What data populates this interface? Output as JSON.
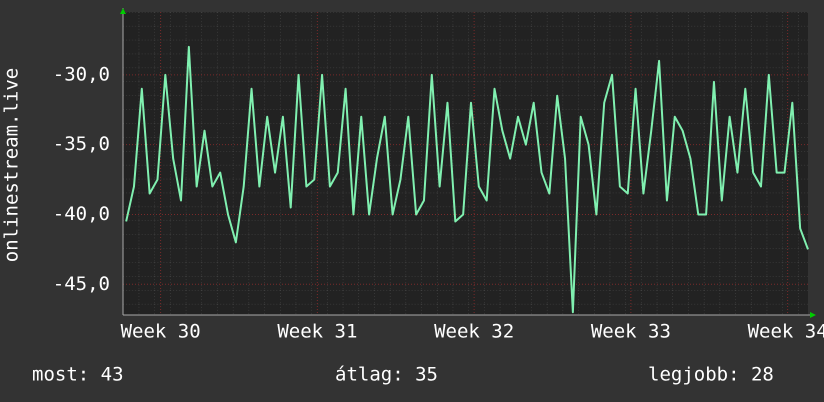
{
  "chart_data": {
    "type": "line",
    "y_label": "onlinestream.live",
    "x": [
      29.78,
      29.83,
      29.88,
      29.93,
      29.98,
      30.03,
      30.08,
      30.13,
      30.18,
      30.23,
      30.28,
      30.33,
      30.38,
      30.43,
      30.48,
      30.53,
      30.58,
      30.63,
      30.68,
      30.73,
      30.78,
      30.83,
      30.88,
      30.93,
      30.98,
      31.03,
      31.08,
      31.13,
      31.18,
      31.23,
      31.28,
      31.33,
      31.38,
      31.43,
      31.48,
      31.53,
      31.58,
      31.63,
      31.68,
      31.73,
      31.78,
      31.83,
      31.88,
      31.93,
      31.98,
      32.03,
      32.08,
      32.13,
      32.18,
      32.23,
      32.28,
      32.33,
      32.38,
      32.43,
      32.48,
      32.53,
      32.58,
      32.63,
      32.68,
      32.73,
      32.78,
      32.83,
      32.88,
      32.93,
      32.98,
      33.03,
      33.08,
      33.13,
      33.18,
      33.23,
      33.28,
      33.33,
      33.38,
      33.43,
      33.48,
      33.53,
      33.58,
      33.63,
      33.68,
      33.73,
      33.78,
      33.83,
      33.88,
      33.93,
      33.98,
      34.03,
      34.08,
      34.13
    ],
    "series": [
      {
        "color": "#80f0b0",
        "values": [
          -40.5,
          -38,
          -31,
          -38.5,
          -37.5,
          -30,
          -36,
          -39,
          -28,
          -38,
          -34,
          -38,
          -37,
          -40,
          -42,
          -38,
          -31,
          -38,
          -33,
          -37,
          -33,
          -39.5,
          -30,
          -38,
          -37.5,
          -30,
          -38,
          -37,
          -31,
          -40,
          -33,
          -40,
          -36,
          -33,
          -40,
          -37.5,
          -33,
          -40,
          -39,
          -30,
          -38,
          -32,
          -40.5,
          -40,
          -32,
          -38,
          -39,
          -31,
          -34,
          -36,
          -33,
          -35,
          -32,
          -37,
          -38.5,
          -31.5,
          -36,
          -47,
          -33,
          -35,
          -40,
          -32,
          -30,
          -38,
          -38.5,
          -31,
          -38.5,
          -34,
          -29,
          -39,
          -33,
          -34,
          -36,
          -40,
          -40,
          -30.5,
          -39,
          -33,
          -37,
          -31,
          -37,
          -38,
          -30,
          -37,
          -37,
          -32,
          -41,
          -42.5
        ]
      }
    ],
    "xlim": [
      29.76,
      34.13
    ],
    "xticks": [
      {
        "value": 30,
        "label": "Week 30"
      },
      {
        "value": 31,
        "label": "Week 31"
      },
      {
        "value": 32,
        "label": "Week 32"
      },
      {
        "value": 33,
        "label": "Week 33"
      },
      {
        "value": 34,
        "label": "Week 34"
      }
    ],
    "ylim": [
      -47.2,
      -25.5
    ],
    "yticks": [
      {
        "value": -45,
        "label": "-45,0"
      },
      {
        "value": -40,
        "label": "-40,0"
      },
      {
        "value": -35,
        "label": "-35,0"
      },
      {
        "value": -30,
        "label": "-30,0"
      }
    ],
    "grid": true,
    "footer": [
      "most: 43",
      "átlag: 35",
      "legjobb: 28"
    ]
  }
}
